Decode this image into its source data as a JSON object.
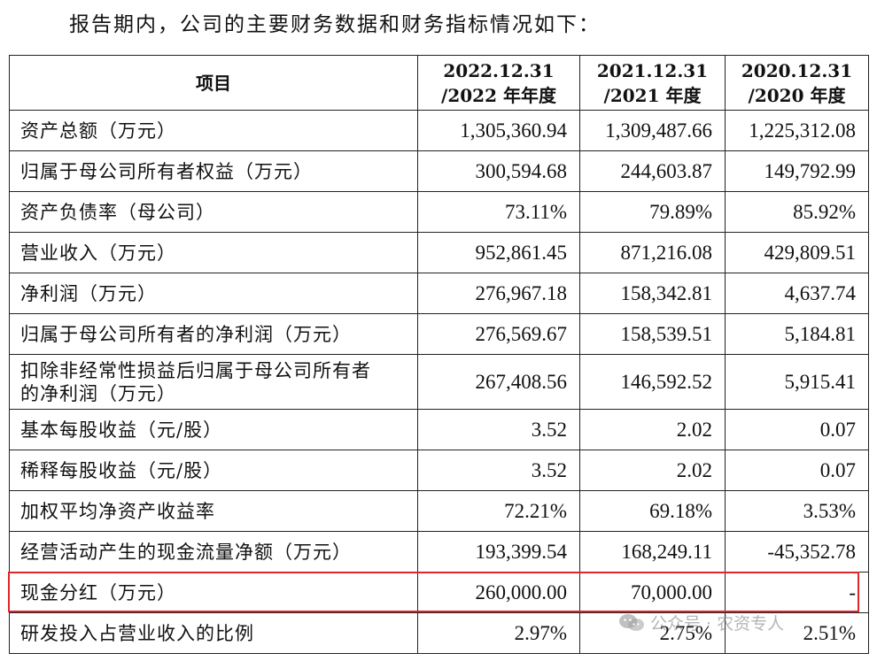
{
  "intro_text": "报告期内，公司的主要财务数据和财务指标情况如下：",
  "table": {
    "header": {
      "item": "项目",
      "col1_line1": "2022.12.31",
      "col1_line2": "/2022 年年度",
      "col2_line1": "2021.12.31",
      "col2_line2": "/2021 年度",
      "col3_line1": "2020.12.31",
      "col3_line2": "/2020 年度"
    },
    "rows": [
      {
        "label": "资产总额（万元）",
        "v2022": "1,305,360.94",
        "v2021": "1,309,487.66",
        "v2020": "1,225,312.08"
      },
      {
        "label": "归属于母公司所有者权益（万元）",
        "v2022": "300,594.68",
        "v2021": "244,603.87",
        "v2020": "149,792.99"
      },
      {
        "label": "资产负债率（母公司）",
        "v2022": "73.11%",
        "v2021": "79.89%",
        "v2020": "85.92%"
      },
      {
        "label": "营业收入（万元）",
        "v2022": "952,861.45",
        "v2021": "871,216.08",
        "v2020": "429,809.51"
      },
      {
        "label": "净利润（万元）",
        "v2022": "276,967.18",
        "v2021": "158,342.81",
        "v2020": "4,637.74"
      },
      {
        "label": "归属于母公司所有者的净利润（万元）",
        "v2022": "276,569.67",
        "v2021": "158,539.51",
        "v2020": "5,184.81"
      },
      {
        "label_line1": "扣除非经常性损益后归属于母公司所有者",
        "label_line2": "的净利润（万元）",
        "v2022": "267,408.56",
        "v2021": "146,592.52",
        "v2020": "5,915.41"
      },
      {
        "label": "基本每股收益（元/股）",
        "v2022": "3.52",
        "v2021": "2.02",
        "v2020": "0.07"
      },
      {
        "label": "稀释每股收益（元/股）",
        "v2022": "3.52",
        "v2021": "2.02",
        "v2020": "0.07"
      },
      {
        "label": "加权平均净资产收益率",
        "v2022": "72.21%",
        "v2021": "69.18%",
        "v2020": "3.53%"
      },
      {
        "label": "经营活动产生的现金流量净额（万元）",
        "v2022": "193,399.54",
        "v2021": "168,249.11",
        "v2020": "-45,352.78"
      },
      {
        "label": "现金分红（万元）",
        "v2022": "260,000.00",
        "v2021": "70,000.00",
        "v2020": "-"
      },
      {
        "label": "研发投入占营业收入的比例",
        "v2022": "2.97%",
        "v2021": "2.75%",
        "v2020": "2.51%"
      }
    ]
  },
  "watermark": {
    "text": "公众号 · 农资专人"
  },
  "colors": {
    "highlight": "#e0262b",
    "text": "#111111",
    "border": "#222222"
  }
}
